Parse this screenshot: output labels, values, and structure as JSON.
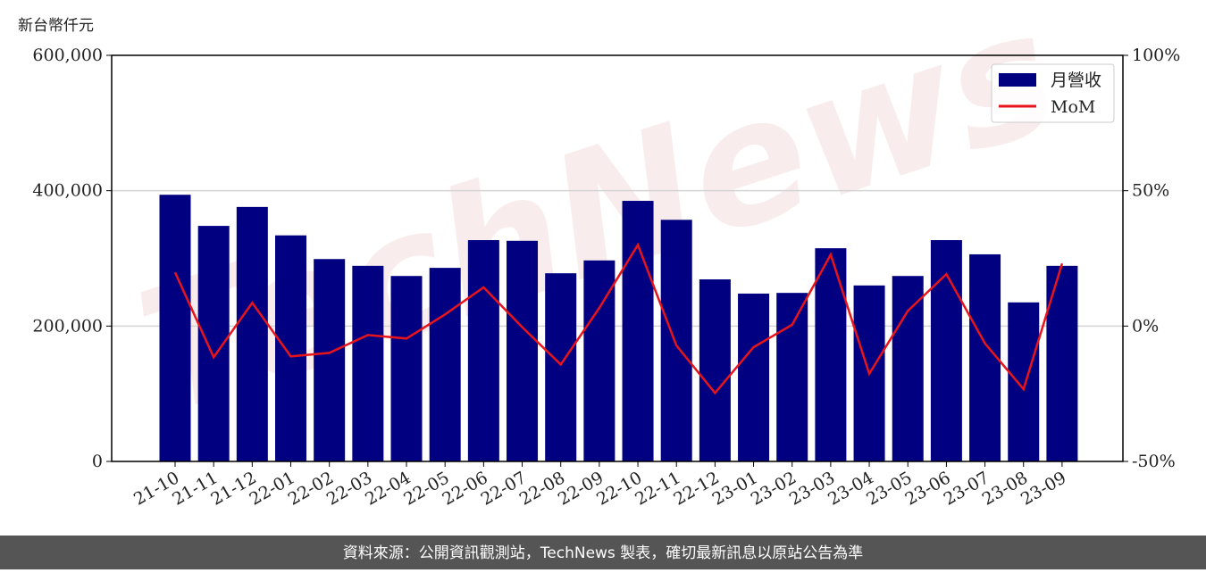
{
  "chart_data": {
    "type": "bar-line",
    "y_label": "新台幣仟元",
    "watermark": "TechNews",
    "source": "資料來源：公開資訊觀測站，TechNews 製表，確切最新訊息以原站公告為準",
    "categories": [
      "21-10",
      "21-11",
      "21-12",
      "22-01",
      "22-02",
      "22-03",
      "22-04",
      "22-05",
      "22-06",
      "22-07",
      "22-08",
      "22-09",
      "22-10",
      "22-11",
      "22-12",
      "23-01",
      "23-02",
      "23-03",
      "23-04",
      "23-05",
      "23-06",
      "23-07",
      "23-08",
      "23-09"
    ],
    "series": [
      {
        "name": "月營收",
        "type": "bar",
        "color": "#000080",
        "values": [
          394000,
          348000,
          376000,
          334000,
          299000,
          289000,
          274000,
          286000,
          327000,
          326000,
          278000,
          297000,
          385000,
          357000,
          269000,
          248000,
          249000,
          315000,
          260000,
          274000,
          327000,
          306000,
          235000,
          289000
        ]
      },
      {
        "name": "MoM",
        "type": "line",
        "axis": "y2",
        "color": "#e8141b",
        "values": [
          19.8,
          -11.5,
          8.6,
          -11.2,
          -9.9,
          -3.3,
          -4.6,
          4.3,
          14.3,
          -0.4,
          -14.2,
          6.7,
          30,
          -7.2,
          -24.7,
          -7.8,
          0.5,
          26.4,
          -17.6,
          5.6,
          19.2,
          -6.4,
          -23.3,
          23.1
        ]
      }
    ],
    "ylim": [
      0,
      600000
    ],
    "yticks": [
      0,
      {
        "value": 200000,
        "label": "200,000"
      },
      {
        "value": 400000,
        "label": "400,000"
      },
      {
        "value": 600000,
        "label": "600,000"
      }
    ],
    "y2lim": [
      -50,
      100
    ],
    "y2ticks": [
      {
        "value": -50,
        "label": "-50%"
      },
      {
        "value": 0,
        "label": "0%"
      },
      {
        "value": 50,
        "label": "50%"
      },
      {
        "value": 100,
        "label": "100%"
      }
    ],
    "grid": true,
    "legend": "upper right"
  }
}
